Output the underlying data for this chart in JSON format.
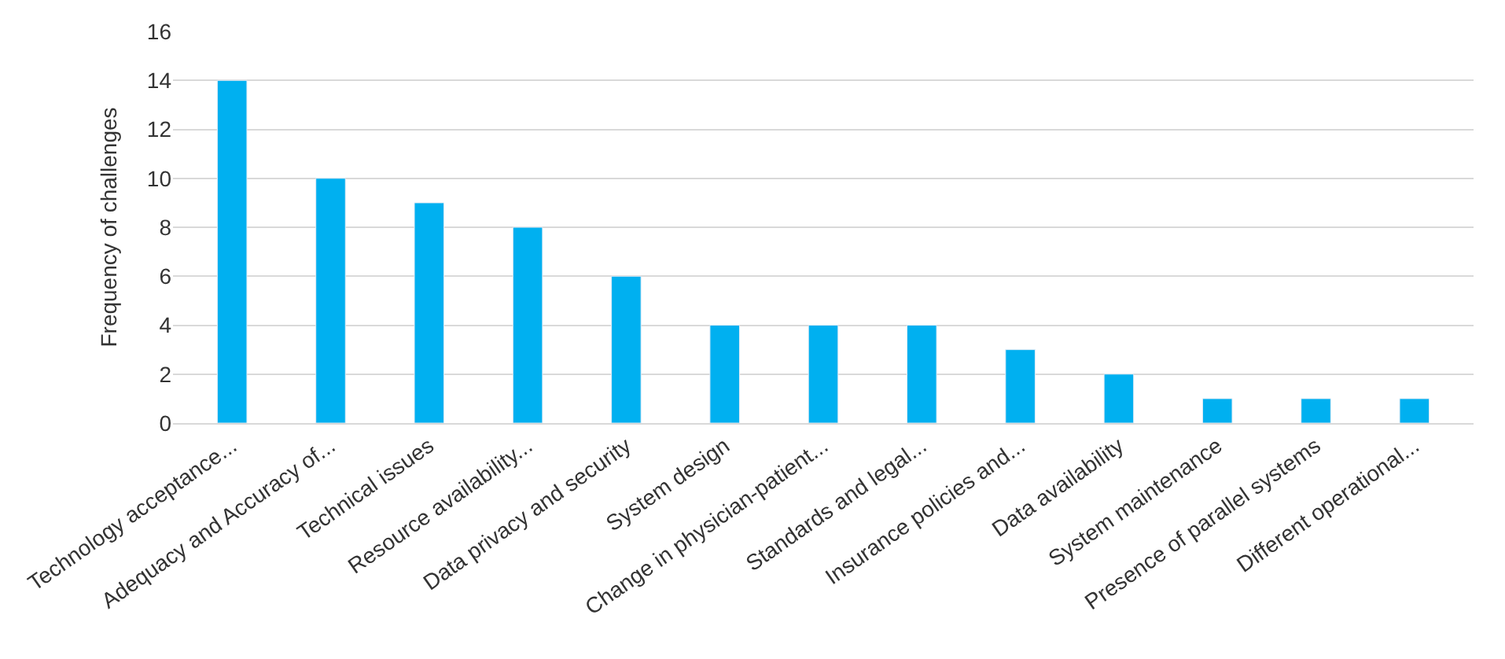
{
  "chart_data": {
    "type": "bar",
    "ylabel": "Frequency of challenges",
    "categories": [
      "Technology acceptance...",
      "Adequacy and Accuracy of...",
      "Technical issues",
      "Resource availability...",
      "Data privacy and security",
      "System design",
      "Change in physician-patient...",
      "Standards and legal...",
      "Insurance policies and...",
      "Data availability",
      "System maintenance",
      "Presence of parallel systems",
      "Different operational..."
    ],
    "values": [
      14,
      10,
      9,
      8,
      6,
      4,
      4,
      4,
      3,
      2,
      1,
      1,
      1
    ],
    "color": "#00b0f0",
    "ylim": [
      0,
      16
    ],
    "yticks": [
      0,
      2,
      4,
      6,
      8,
      10,
      12,
      14,
      16
    ],
    "grid": "y"
  }
}
